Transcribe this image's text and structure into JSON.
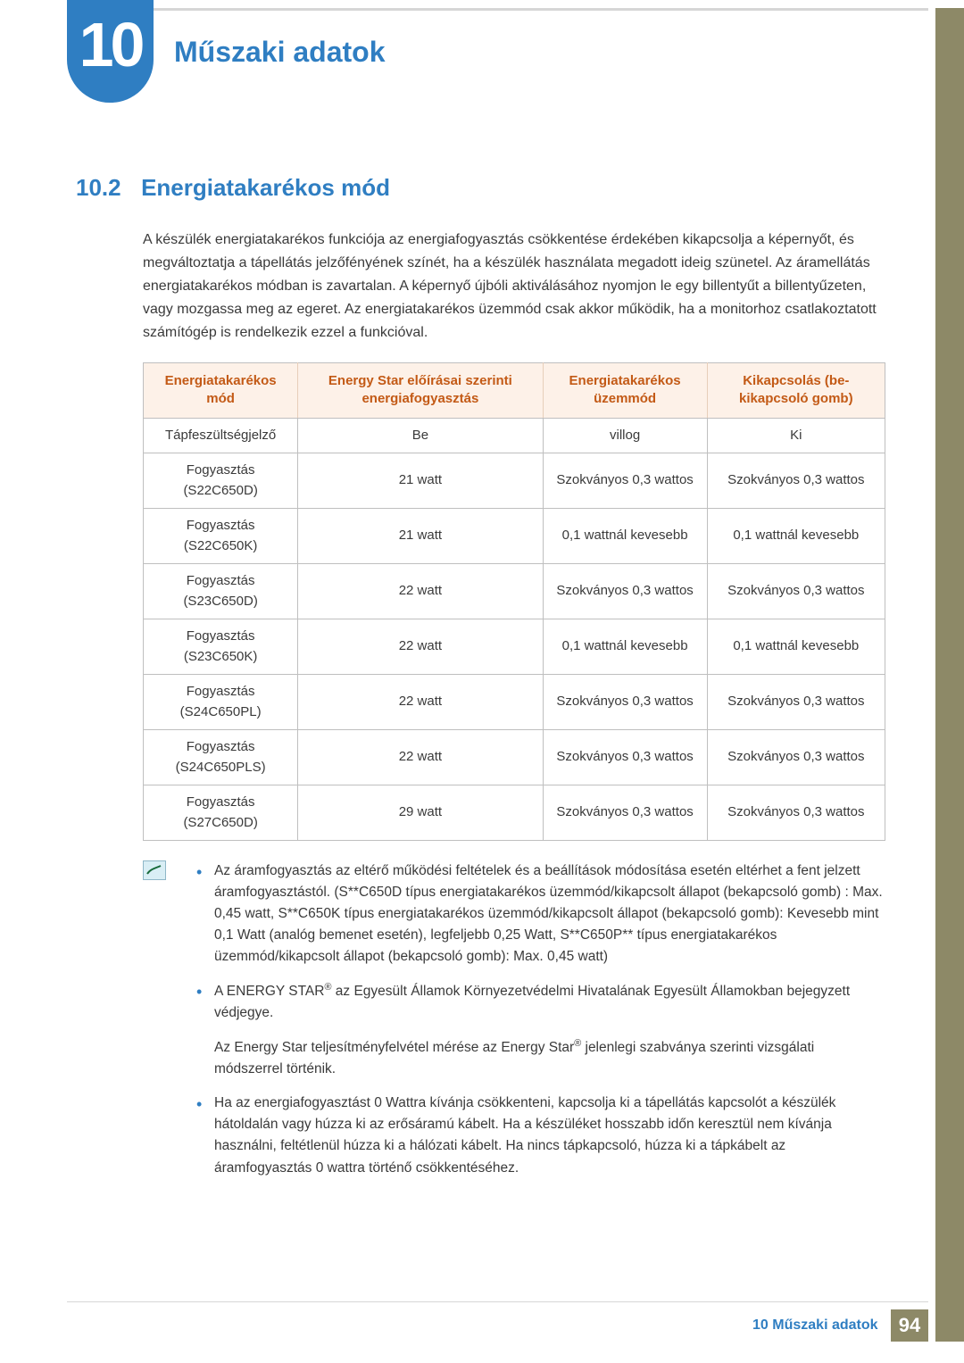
{
  "colors": {
    "accent_blue": "#2f7ec2",
    "accent_orange": "#c35a16",
    "table_header_bg": "#fdf1e8",
    "sidebar": "#8d8967",
    "rule": "#d6d6d6",
    "text": "#3a3a3a"
  },
  "header": {
    "chapter_number": "10",
    "chapter_title": "Műszaki adatok"
  },
  "section": {
    "number": "10.2",
    "title": "Energiatakarékos mód"
  },
  "intro": "A készülék energiatakarékos funkciója az energiafogyasztás csökkentése érdekében kikapcsolja a képernyőt, és megváltoztatja a tápellátás jelzőfényének színét, ha a készülék használata megadott ideig szünetel. Az áramellátás energiatakarékos módban is zavartalan. A képernyő újbóli aktiválásához nyomjon le egy billentyűt a billentyűzeten, vagy mozgassa meg az egeret. Az energiatakarékos üzemmód csak akkor működik, ha a monitorhoz csatlakoztatott számítógép is rendelkezik ezzel a funkcióval.",
  "table": {
    "columns": [
      "Energiatakarékos mód",
      "Energy Star előírásai szerinti energiafogyasztás",
      "Energiatakarékos üzemmód",
      "Kikapcsolás (be-kikapcsoló gomb)"
    ],
    "rows": [
      [
        "Tápfeszültségjelző",
        "Be",
        "villog",
        "Ki"
      ],
      [
        "Fogyasztás (S22C650D)",
        "21 watt",
        "Szokványos 0,3 wattos",
        "Szokványos 0,3 wattos"
      ],
      [
        "Fogyasztás (S22C650K)",
        "21 watt",
        "0,1 wattnál kevesebb",
        "0,1 wattnál kevesebb"
      ],
      [
        "Fogyasztás (S23C650D)",
        "22 watt",
        "Szokványos 0,3 wattos",
        "Szokványos 0,3 wattos"
      ],
      [
        "Fogyasztás (S23C650K)",
        "22 watt",
        "0,1 wattnál kevesebb",
        "0,1 wattnál kevesebb"
      ],
      [
        "Fogyasztás (S24C650PL)",
        "22 watt",
        "Szokványos 0,3 wattos",
        "Szokványos 0,3 wattos"
      ],
      [
        "Fogyasztás (S24C650PLS)",
        "22 watt",
        "Szokványos 0,3 wattos",
        "Szokványos 0,3 wattos"
      ],
      [
        "Fogyasztás (S27C650D)",
        "29 watt",
        "Szokványos 0,3 wattos",
        "Szokványos 0,3 wattos"
      ]
    ]
  },
  "notes": {
    "b1": "Az áramfogyasztás az eltérő működési feltételek és a beállítások módosítása esetén eltérhet a fent jelzett áramfogyasztástól. (S**C650D típus energiatakarékos üzemmód/kikapcsolt állapot (bekapcsoló gomb) : Max. 0,45 watt, S**C650K típus energiatakarékos üzemmód/kikapcsolt állapot (bekapcsoló gomb): Kevesebb mint 0,1 Watt (analóg bemenet esetén), legfeljebb 0,25 Watt, S**C650P** típus energiatakarékos üzemmód/kikapcsolt állapot (bekapcsoló gomb): Max. 0,45 watt)",
    "b2_pre": "A ENERGY STAR",
    "b2_post": " az Egyesült Államok Környezetvédelmi Hivatalának Egyesült Államokban bejegyzett védjegye.",
    "b2_extra_pre": "Az Energy Star teljesítményfelvétel mérése az Energy Star",
    "b2_extra_post": " jelenlegi szabványa szerinti vizsgálati módszerrel történik.",
    "b3": "Ha az energiafogyasztást 0 Wattra kívánja csökkenteni, kapcsolja ki a tápellátás kapcsolót a készülék hátoldalán vagy húzza ki az erősáramú kábelt. Ha a készüléket hosszabb időn keresztül nem kívánja használni, feltétlenül húzza ki a hálózati kábelt. Ha nincs tápkapcsoló, húzza ki a tápkábelt az áramfogyasztás 0 wattra történő csökkentéséhez."
  },
  "footer": {
    "chapter": "10",
    "title": "Műszaki adatok",
    "page": "94"
  }
}
